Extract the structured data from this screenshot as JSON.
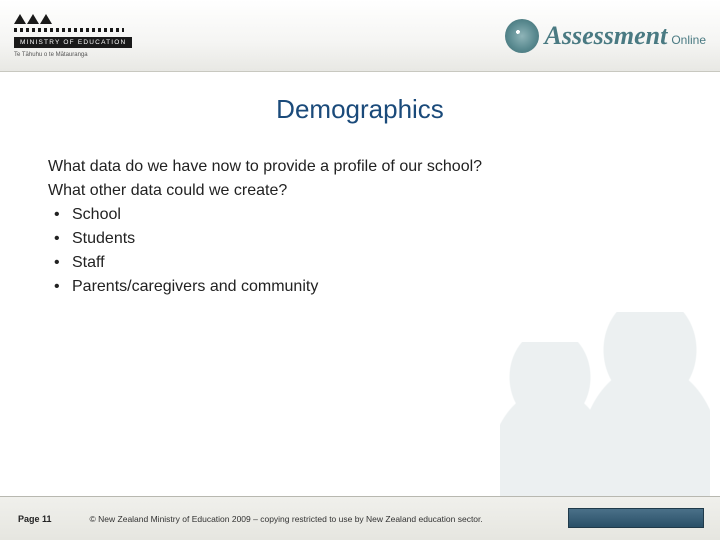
{
  "header": {
    "ministry_label": "MINISTRY OF EDUCATION",
    "maori_subtitle": "Te Tāhuhu o te Mātauranga",
    "brand_main": "Assessment",
    "brand_sub": "Online"
  },
  "title": "Demographics",
  "body": {
    "intro_line1": "What data do we have now to provide a profile of our school?",
    "intro_line2": "What other data could we create?",
    "bullets": [
      "School",
      "Students",
      "Staff",
      "Parents/caregivers and community"
    ]
  },
  "footer": {
    "page_label": "Page 11",
    "copyright": "© New Zealand Ministry of Education 2009 – copying restricted to use by New Zealand education sector."
  },
  "colors": {
    "title_color": "#1a4a7a",
    "brand_color": "#4a7a82",
    "footer_bar": "#2a5068"
  }
}
